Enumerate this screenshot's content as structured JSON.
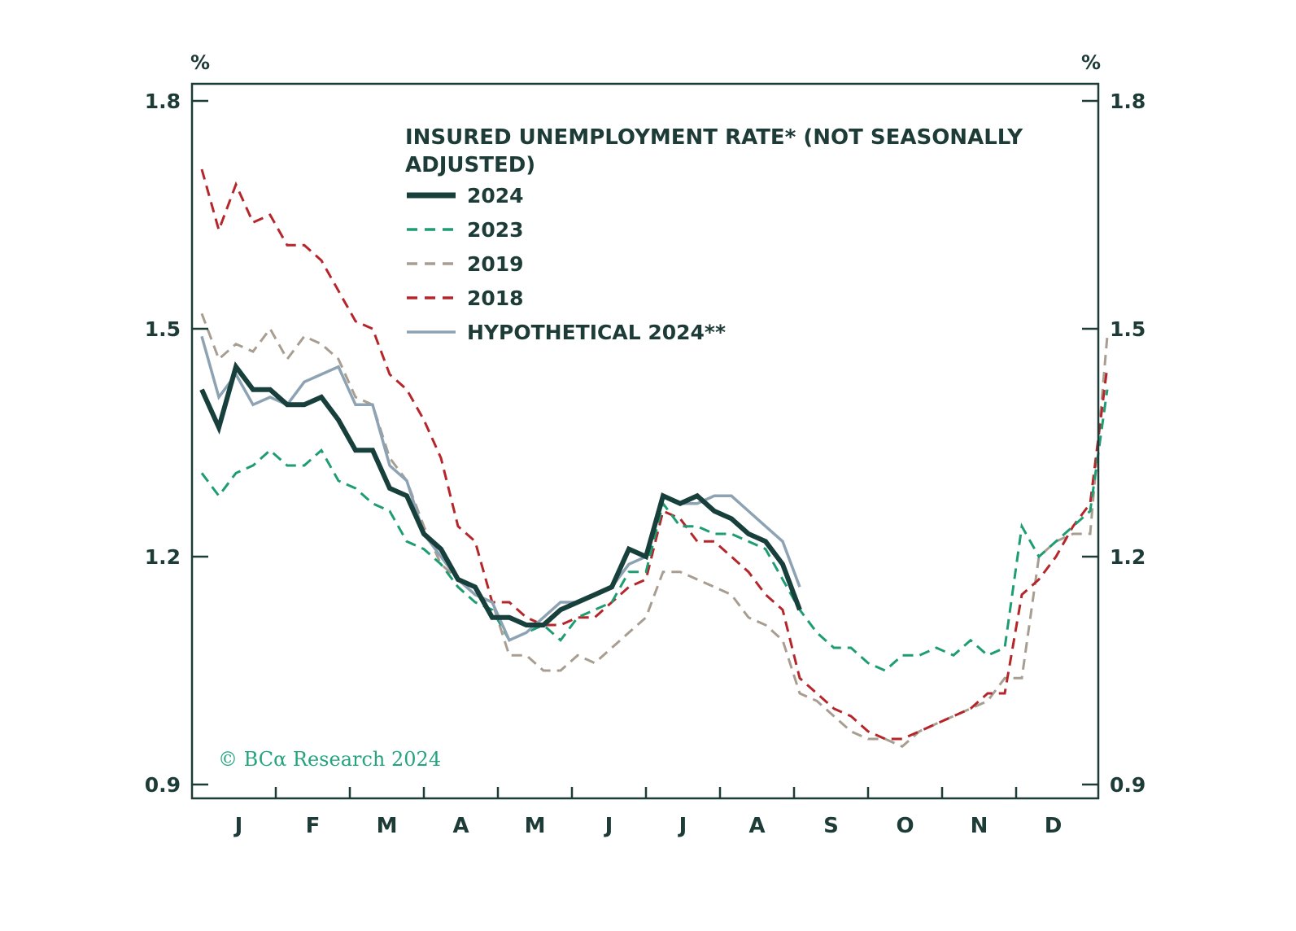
{
  "chart_data": {
    "type": "line",
    "title_lines": [
      "INSURED UNEMPLOYMENT RATE* (NOT SEASONALLY",
      "ADJUSTED)"
    ],
    "unit_left": "%",
    "unit_right": "%",
    "ylim": [
      0.9,
      1.8
    ],
    "yticks": [
      {
        "value": 0.9,
        "label": "0.9"
      },
      {
        "value": 1.2,
        "label": "1.2"
      },
      {
        "value": 1.5,
        "label": "1.5"
      },
      {
        "value": 1.8,
        "label": "1.8"
      }
    ],
    "xlim": [
      0,
      52
    ],
    "x_unit": "week of year",
    "month_labels": [
      "J",
      "F",
      "M",
      "A",
      "M",
      "J",
      "J",
      "A",
      "S",
      "O",
      "N",
      "D"
    ],
    "copyright": "© BCα Research 2024",
    "series": [
      {
        "name": "2019",
        "color": "#a89d91",
        "dash": true,
        "width": 3,
        "values": [
          1.52,
          1.46,
          1.48,
          1.47,
          1.5,
          1.46,
          1.49,
          1.48,
          1.46,
          1.41,
          1.4,
          1.33,
          1.3,
          1.24,
          1.19,
          1.17,
          1.15,
          1.14,
          1.07,
          1.07,
          1.05,
          1.05,
          1.07,
          1.06,
          1.08,
          1.1,
          1.12,
          1.18,
          1.18,
          1.17,
          1.16,
          1.15,
          1.12,
          1.11,
          1.09,
          1.02,
          1.01,
          0.99,
          0.97,
          0.96,
          0.96,
          0.95,
          0.97,
          0.98,
          0.99,
          1.0,
          1.01,
          1.04,
          1.04,
          1.2,
          1.22,
          1.23,
          1.23,
          1.49
        ]
      },
      {
        "name": "2018",
        "color": "#b5262b",
        "dash": true,
        "width": 3,
        "values": [
          1.71,
          1.63,
          1.69,
          1.64,
          1.65,
          1.61,
          1.61,
          1.59,
          1.55,
          1.51,
          1.5,
          1.44,
          1.42,
          1.38,
          1.33,
          1.24,
          1.22,
          1.14,
          1.14,
          1.12,
          1.11,
          1.11,
          1.12,
          1.12,
          1.14,
          1.16,
          1.17,
          1.26,
          1.25,
          1.22,
          1.22,
          1.2,
          1.18,
          1.15,
          1.13,
          1.04,
          1.02,
          1.0,
          0.99,
          0.97,
          0.96,
          0.96,
          0.97,
          0.98,
          0.99,
          1.0,
          1.02,
          1.02,
          1.15,
          1.17,
          1.2,
          1.24,
          1.27,
          1.45
        ]
      },
      {
        "name": "2023",
        "color": "#1e9c72",
        "dash": true,
        "width": 3,
        "values": [
          1.31,
          1.28,
          1.31,
          1.32,
          1.34,
          1.32,
          1.32,
          1.34,
          1.3,
          1.29,
          1.27,
          1.26,
          1.22,
          1.21,
          1.19,
          1.16,
          1.14,
          1.13,
          1.09,
          1.1,
          1.11,
          1.09,
          1.12,
          1.13,
          1.14,
          1.18,
          1.18,
          1.27,
          1.24,
          1.24,
          1.23,
          1.23,
          1.22,
          1.21,
          1.17,
          1.13,
          1.1,
          1.08,
          1.08,
          1.06,
          1.05,
          1.07,
          1.07,
          1.08,
          1.07,
          1.09,
          1.07,
          1.08,
          1.24,
          1.2,
          1.22,
          1.24,
          1.26,
          1.42
        ]
      },
      {
        "name": "HYPOTHETICAL 2024**",
        "color": "#8da3b3",
        "dash": false,
        "width": 3.5,
        "values": [
          1.49,
          1.41,
          1.44,
          1.4,
          1.41,
          1.4,
          1.43,
          1.44,
          1.45,
          1.4,
          1.4,
          1.32,
          1.3,
          1.23,
          1.2,
          1.17,
          1.15,
          1.14,
          1.09,
          1.1,
          1.12,
          1.14,
          1.14,
          1.15,
          1.16,
          1.19,
          1.2,
          1.28,
          1.27,
          1.27,
          1.28,
          1.28,
          1.26,
          1.24,
          1.22,
          1.16
        ]
      },
      {
        "name": "2024",
        "color": "#173f3b",
        "dash": false,
        "width": 6,
        "values": [
          1.42,
          1.37,
          1.45,
          1.42,
          1.42,
          1.4,
          1.4,
          1.41,
          1.38,
          1.34,
          1.34,
          1.29,
          1.28,
          1.23,
          1.21,
          1.17,
          1.16,
          1.12,
          1.12,
          1.11,
          1.11,
          1.13,
          1.14,
          1.15,
          1.16,
          1.21,
          1.2,
          1.28,
          1.27,
          1.28,
          1.26,
          1.25,
          1.23,
          1.22,
          1.19,
          1.13
        ]
      }
    ],
    "legend_order": [
      "2024",
      "2023",
      "2019",
      "2018",
      "HYPOTHETICAL 2024**"
    ]
  }
}
